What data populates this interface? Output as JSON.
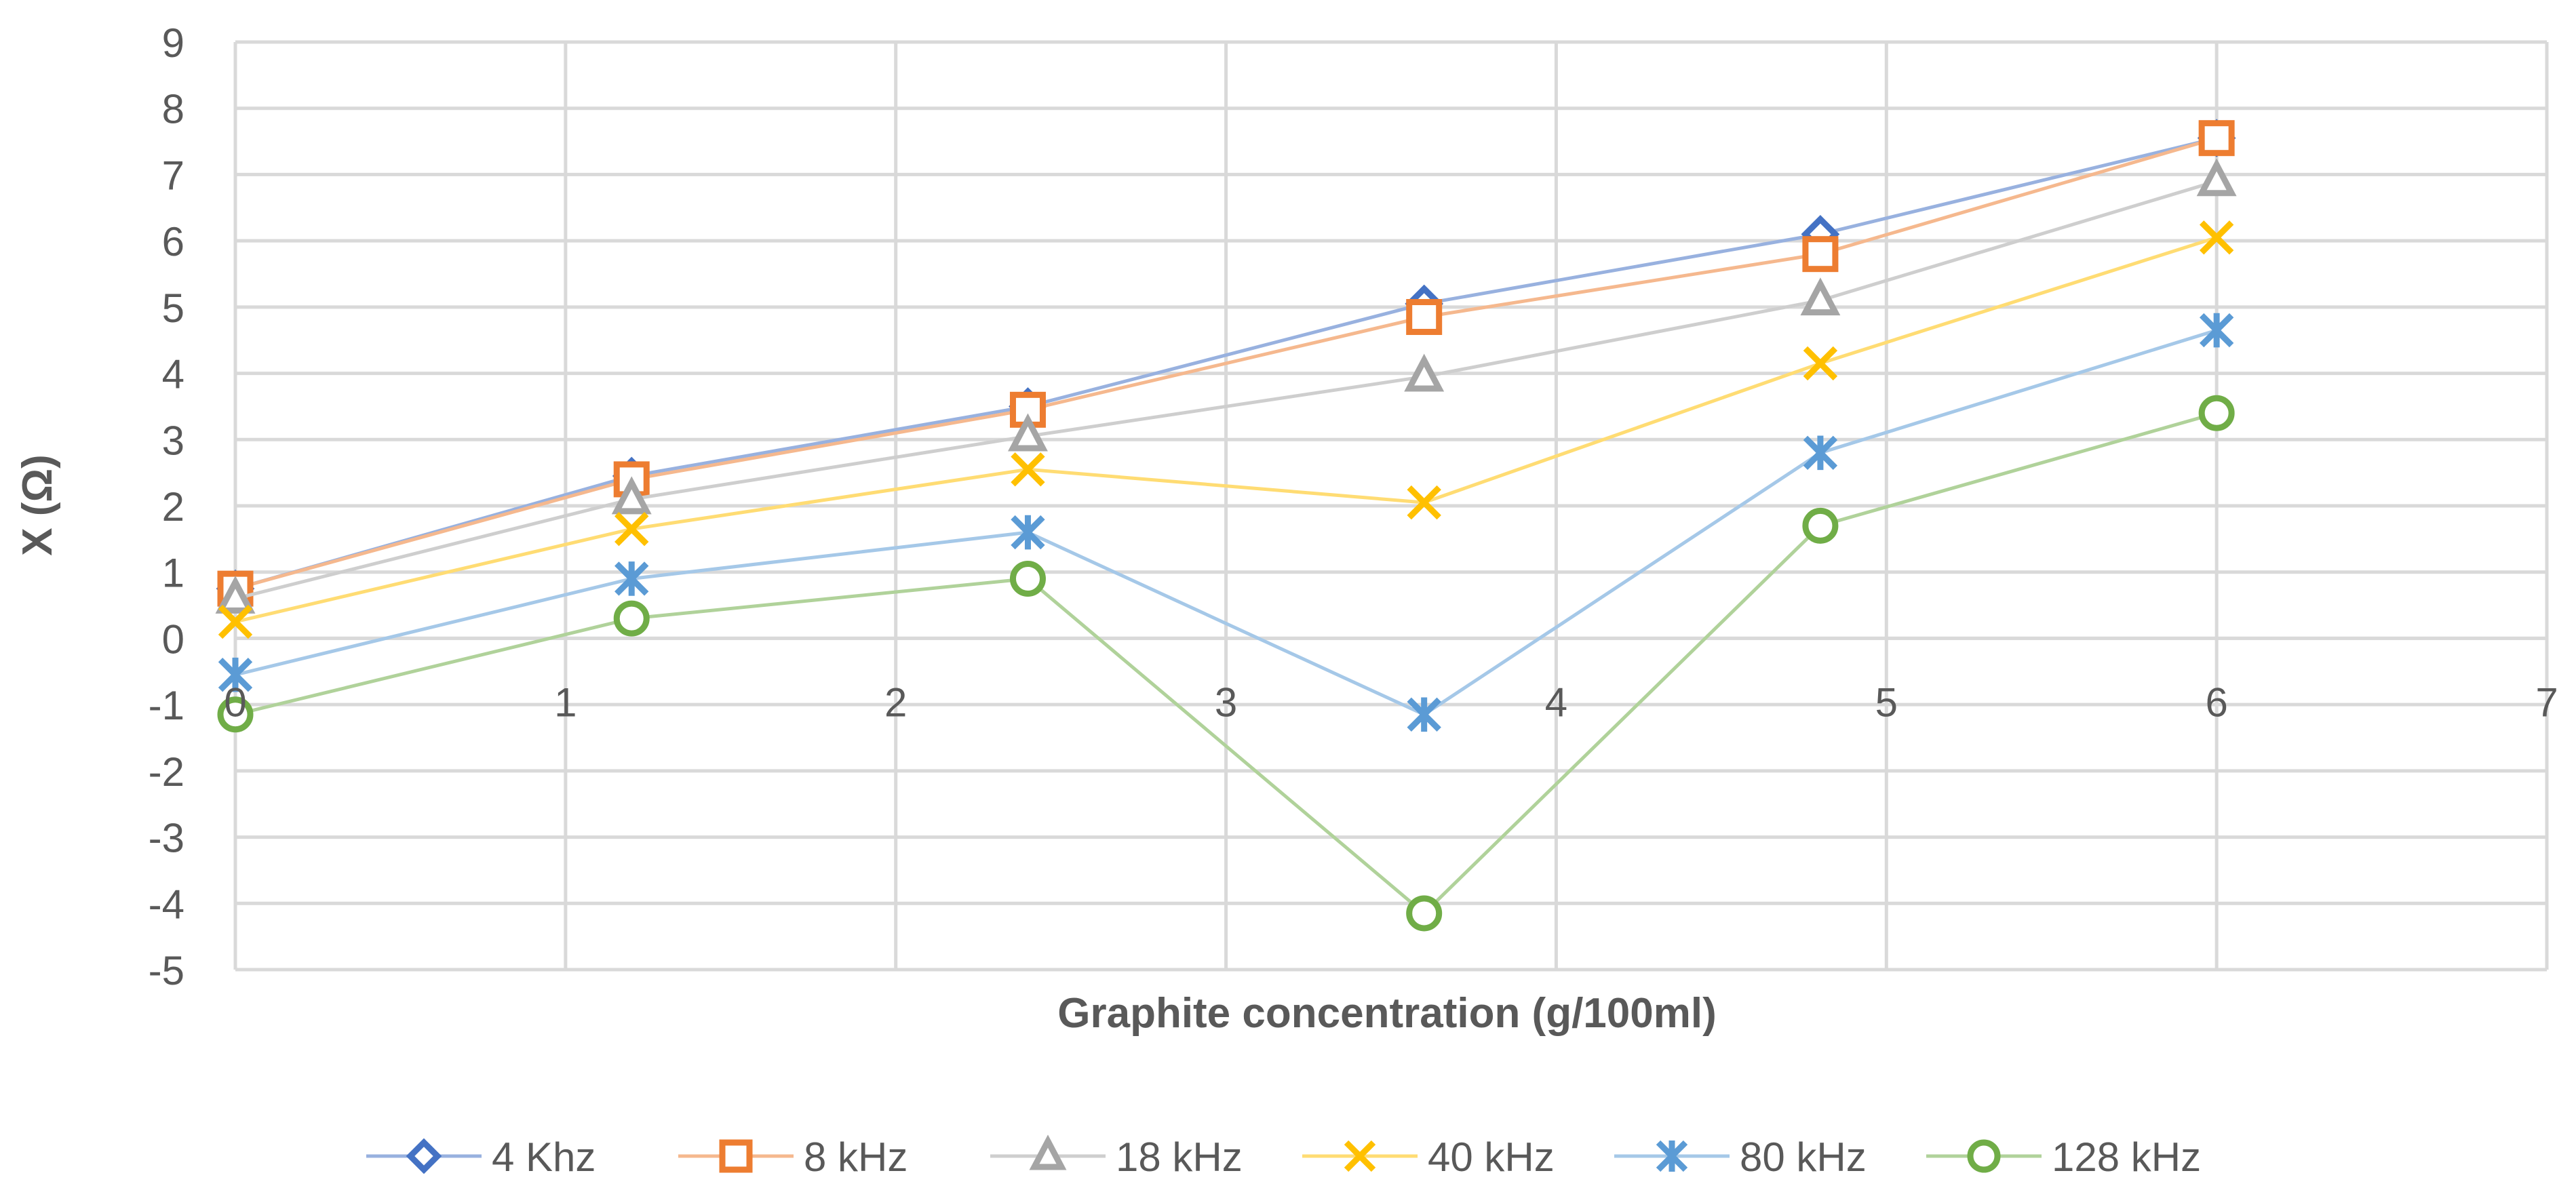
{
  "chart_data": {
    "type": "line",
    "title": "",
    "xlabel": "Graphite concentration (g/100ml)",
    "ylabel": "X (Ω)",
    "xlim": [
      0,
      7
    ],
    "ylim": [
      -5,
      9
    ],
    "x_ticks": [
      "0",
      "1",
      "2",
      "3",
      "4",
      "5",
      "6",
      "7"
    ],
    "y_ticks": [
      "9",
      "8",
      "7",
      "6",
      "5",
      "4",
      "3",
      "2",
      "1",
      "0",
      "-1",
      "-2",
      "-3",
      "-4",
      "-5"
    ],
    "grid": true,
    "legend_position": "bottom",
    "x": [
      0,
      1.2,
      2.4,
      3.6,
      4.8,
      6
    ],
    "series": [
      {
        "name": "4 Khz",
        "marker": "diamond",
        "color": "#4472C4",
        "values": [
          0.75,
          2.45,
          3.5,
          5.05,
          6.1,
          7.55
        ]
      },
      {
        "name": "8 kHz",
        "marker": "square",
        "color": "#ED7D31",
        "values": [
          0.75,
          2.4,
          3.45,
          4.85,
          5.8,
          7.55
        ]
      },
      {
        "name": "18 kHz",
        "marker": "triangle",
        "color": "#A5A5A5",
        "values": [
          0.6,
          2.1,
          3.05,
          3.95,
          5.1,
          6.9
        ]
      },
      {
        "name": "40 kHz",
        "marker": "x",
        "color": "#FFC000",
        "values": [
          0.25,
          1.65,
          2.55,
          2.05,
          4.15,
          6.05
        ]
      },
      {
        "name": "80 kHz",
        "marker": "star",
        "color": "#5B9BD5",
        "values": [
          -0.55,
          0.9,
          1.6,
          -1.15,
          2.8,
          4.65
        ]
      },
      {
        "name": "128 kHz",
        "marker": "circle",
        "color": "#70AD47",
        "values": [
          -1.15,
          0.3,
          0.9,
          -4.15,
          1.7,
          3.4
        ]
      }
    ]
  }
}
